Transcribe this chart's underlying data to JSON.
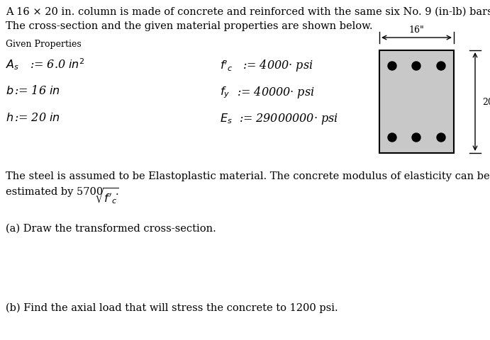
{
  "title_line1": "A 16 × 20 in. column is made of concrete and reinforced with the same six No. 9 (in-lb) bars.",
  "title_line2": "The cross-section and the given material properties are shown below.",
  "given_label": "Given Properties",
  "body_line1": "The steel is assumed to be Elastoplastic material. The concrete modulus of elasticity can be",
  "body_line2": "estimated by 5700",
  "part_a": "(a) Draw the transformed cross-section.",
  "part_b": "(b) Find the axial load that will stress the concrete to 1200 psi.",
  "rect_color": "#c8c8c8",
  "bg_color": "#ffffff",
  "main_fontsize": 10.5,
  "prop_fontsize": 11.5,
  "small_fontsize": 9.0
}
